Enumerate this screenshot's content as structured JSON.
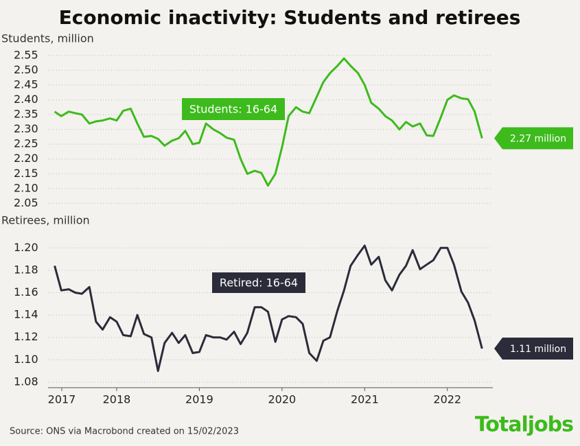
{
  "title": "Economic inactivity: Students and retirees",
  "source": "Source: ONS via Macrobond created on 15/02/2023",
  "brand": "Totaljobs",
  "chart_data": [
    {
      "type": "line",
      "ylabel": "Students, million",
      "annotation": "Students: 16-64",
      "end_label": "2.27 million",
      "color": "#3dba1c",
      "grid": true,
      "xlim": [
        2017.67,
        2023.05
      ],
      "ylim": [
        2.03,
        2.575
      ],
      "yticks": [
        2.05,
        {
          "value": 2.1,
          "label": "2.10"
        },
        2.15,
        {
          "value": 2.2,
          "label": "2.20"
        },
        2.25,
        {
          "value": 2.3,
          "label": "2.30"
        },
        2.35,
        {
          "value": 2.4,
          "label": "2.40"
        },
        2.45,
        {
          "value": 2.5,
          "label": "2.50"
        },
        2.55
      ],
      "x": [
        2017.75,
        2017.83,
        2017.92,
        2018.0,
        2018.08,
        2018.17,
        2018.25,
        2018.33,
        2018.42,
        2018.5,
        2018.58,
        2018.67,
        2018.75,
        2018.83,
        2018.92,
        2019.0,
        2019.08,
        2019.17,
        2019.25,
        2019.33,
        2019.42,
        2019.5,
        2019.58,
        2019.67,
        2019.75,
        2019.83,
        2019.92,
        2020.0,
        2020.08,
        2020.17,
        2020.25,
        2020.33,
        2020.42,
        2020.5,
        2020.58,
        2020.67,
        2020.75,
        2020.83,
        2020.92,
        2021.0,
        2021.08,
        2021.17,
        2021.25,
        2021.33,
        2021.42,
        2021.5,
        2021.58,
        2021.67,
        2021.75,
        2021.83,
        2021.92,
        2022.0,
        2022.08,
        2022.17,
        2022.25,
        2022.33,
        2022.42,
        2022.5,
        2022.58,
        2022.67,
        2022.75,
        2022.83,
        2022.92
      ],
      "values": [
        2.36,
        2.345,
        2.36,
        2.355,
        2.35,
        2.32,
        2.327,
        2.33,
        2.337,
        2.33,
        2.363,
        2.37,
        2.32,
        2.275,
        2.278,
        2.268,
        2.245,
        2.262,
        2.27,
        2.295,
        2.25,
        2.255,
        2.32,
        2.3,
        2.288,
        2.272,
        2.265,
        2.2,
        2.15,
        2.16,
        2.153,
        2.11,
        2.15,
        2.24,
        2.345,
        2.375,
        2.36,
        2.355,
        2.41,
        2.46,
        2.49,
        2.515,
        2.54,
        2.515,
        2.49,
        2.45,
        2.39,
        2.37,
        2.345,
        2.33,
        2.3,
        2.325,
        2.31,
        2.32,
        2.28,
        2.278,
        2.34,
        2.4,
        2.415,
        2.405,
        2.402,
        2.36,
        2.27
      ]
    },
    {
      "type": "line",
      "ylabel": "Retirees, million",
      "annotation": "Retired: 16-64",
      "end_label": "1.11 million",
      "color": "#2b2b3a",
      "grid": true,
      "xlim": [
        2017.67,
        2023.05
      ],
      "ylim": [
        1.075,
        1.21
      ],
      "yticks": [
        1.08,
        {
          "value": 1.1,
          "label": "1.10"
        },
        1.12,
        1.14,
        1.16,
        1.18,
        {
          "value": 1.2,
          "label": "1.20"
        }
      ],
      "xticks": [
        {
          "value": 2017.5,
          "label": "2017"
        },
        {
          "value": 2018.5,
          "label": "2018"
        },
        {
          "value": 2019.5,
          "label": "2019"
        },
        {
          "value": 2020.5,
          "label": "2020"
        },
        {
          "value": 2021.5,
          "label": "2021"
        },
        {
          "value": 2022.5,
          "label": "2022"
        }
      ],
      "x": [
        2017.75,
        2017.83,
        2017.92,
        2018.0,
        2018.08,
        2018.17,
        2018.25,
        2018.33,
        2018.42,
        2018.5,
        2018.58,
        2018.67,
        2018.75,
        2018.83,
        2018.92,
        2019.0,
        2019.08,
        2019.17,
        2019.25,
        2019.33,
        2019.42,
        2019.5,
        2019.58,
        2019.67,
        2019.75,
        2019.83,
        2019.92,
        2020.0,
        2020.08,
        2020.17,
        2020.25,
        2020.33,
        2020.42,
        2020.5,
        2020.58,
        2020.67,
        2020.75,
        2020.83,
        2020.92,
        2021.0,
        2021.08,
        2021.17,
        2021.25,
        2021.33,
        2021.42,
        2021.5,
        2021.58,
        2021.67,
        2021.75,
        2021.83,
        2021.92,
        2022.0,
        2022.08,
        2022.17,
        2022.25,
        2022.33,
        2022.42,
        2022.5,
        2022.58,
        2022.67,
        2022.75,
        2022.83,
        2022.92
      ],
      "values": [
        1.184,
        1.162,
        1.163,
        1.16,
        1.159,
        1.165,
        1.134,
        1.127,
        1.138,
        1.134,
        1.122,
        1.121,
        1.14,
        1.123,
        1.12,
        1.09,
        1.115,
        1.124,
        1.115,
        1.122,
        1.106,
        1.107,
        1.122,
        1.12,
        1.12,
        1.118,
        1.125,
        1.114,
        1.124,
        1.147,
        1.147,
        1.143,
        1.116,
        1.136,
        1.139,
        1.138,
        1.132,
        1.106,
        1.099,
        1.117,
        1.12,
        1.144,
        1.162,
        1.184,
        1.194,
        1.202,
        1.185,
        1.192,
        1.171,
        1.162,
        1.176,
        1.184,
        1.198,
        1.181,
        1.185,
        1.189,
        1.2,
        1.2,
        1.185,
        1.161,
        1.151,
        1.135,
        1.11
      ]
    }
  ]
}
